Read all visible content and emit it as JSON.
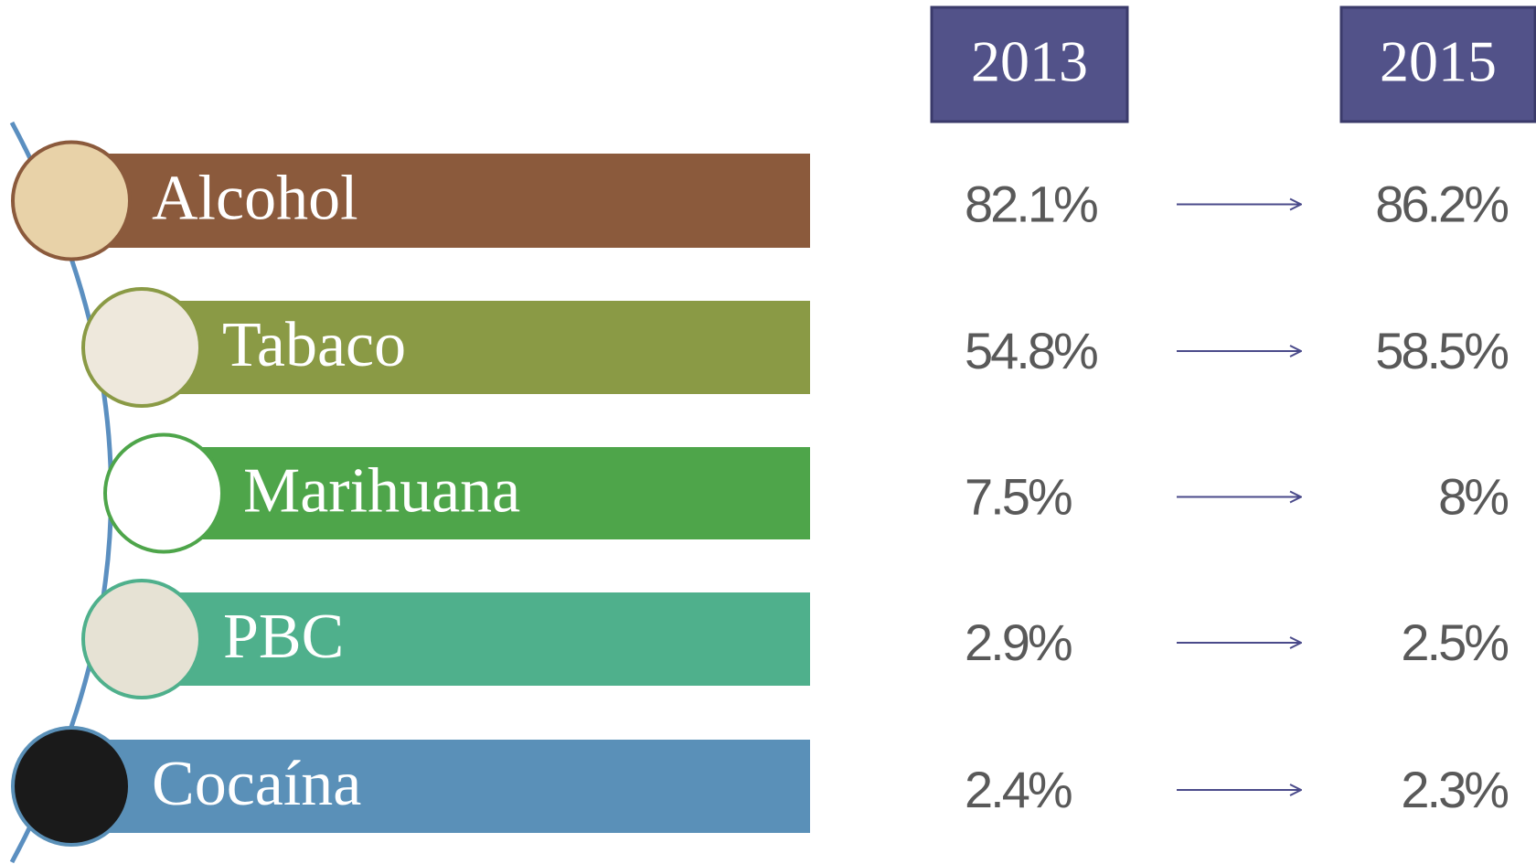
{
  "header": {
    "years": [
      "2013",
      "2015"
    ]
  },
  "rows": [
    {
      "label": "Alcohol",
      "values": [
        "82.1%",
        "86.2%"
      ]
    },
    {
      "label": "Tabaco",
      "values": [
        "54.8%",
        "58.5%"
      ]
    },
    {
      "label": "Marihuana",
      "values": [
        "7.5%",
        "8%"
      ]
    },
    {
      "label": "PBC",
      "values": [
        "2.9%",
        "2.5%"
      ]
    },
    {
      "label": "Cocaína",
      "values": [
        "2.4%",
        "2.3%"
      ]
    }
  ]
}
